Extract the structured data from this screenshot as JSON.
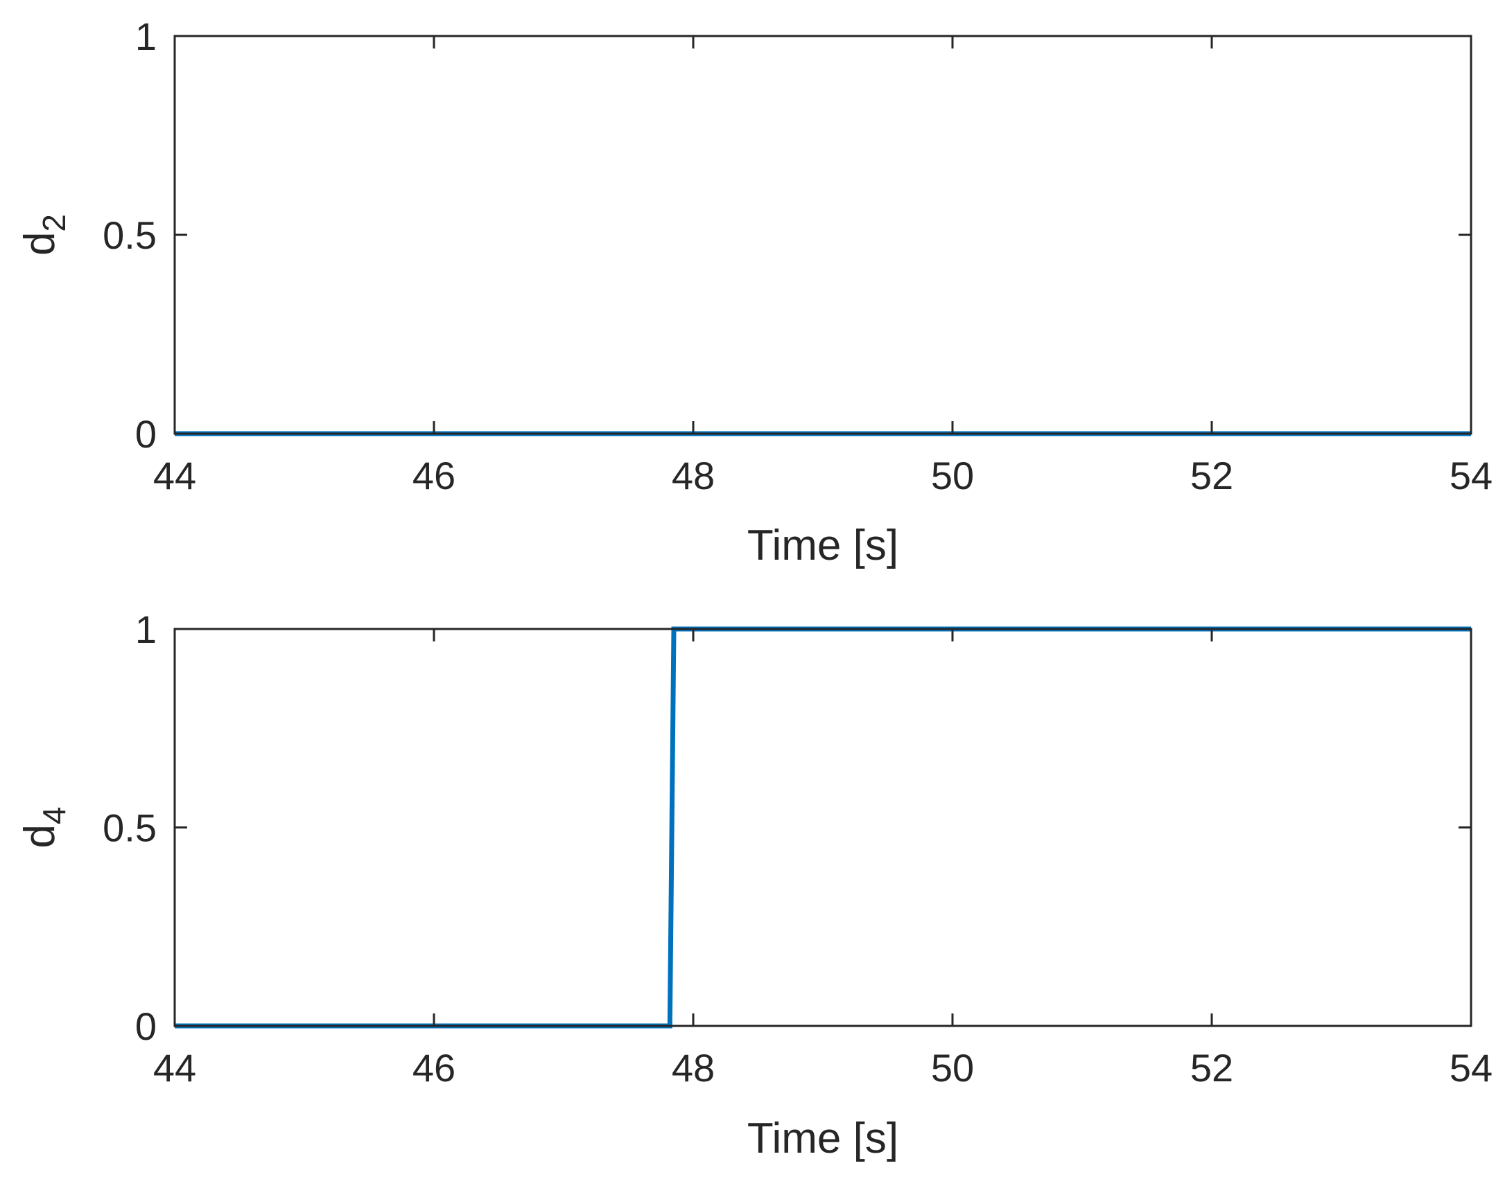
{
  "chart_data": [
    {
      "type": "line",
      "xlabel": "Time [s]",
      "ylabel": {
        "base": "d",
        "subscript": "2"
      },
      "xlim": [
        44,
        54
      ],
      "ylim": [
        0,
        1
      ],
      "xticks": [
        44,
        46,
        48,
        50,
        52,
        54
      ],
      "yticks": [
        0,
        0.5,
        1
      ],
      "xtick_labels": [
        "44",
        "46",
        "48",
        "50",
        "52",
        "54"
      ],
      "ytick_labels": [
        "0",
        "0.5",
        "1"
      ],
      "grid": false,
      "line_color": "#0072BD",
      "series": [
        {
          "x": [
            44,
            54
          ],
          "y": [
            0,
            0
          ]
        }
      ]
    },
    {
      "type": "line",
      "xlabel": "Time [s]",
      "ylabel": {
        "base": "d",
        "subscript": "4"
      },
      "xlim": [
        44,
        54
      ],
      "ylim": [
        0,
        1
      ],
      "xticks": [
        44,
        46,
        48,
        50,
        52,
        54
      ],
      "yticks": [
        0,
        0.5,
        1
      ],
      "xtick_labels": [
        "44",
        "46",
        "48",
        "50",
        "52",
        "54"
      ],
      "ytick_labels": [
        "0",
        "0.5",
        "1"
      ],
      "grid": false,
      "line_color": "#0072BD",
      "series": [
        {
          "x": [
            44,
            47.82,
            47.85,
            54
          ],
          "y": [
            0,
            0,
            1,
            1
          ]
        }
      ]
    }
  ]
}
